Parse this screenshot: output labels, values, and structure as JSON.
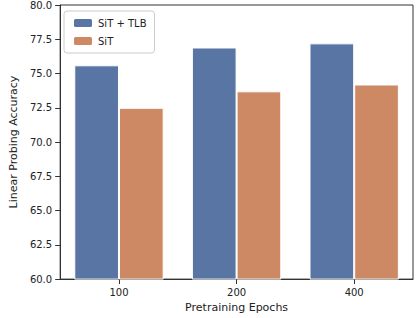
{
  "chart_data": {
    "type": "bar",
    "x_label": "Pretraining Epochs",
    "y_label": "Linear Probing Accuracy",
    "categories": [
      "100",
      "200",
      "400"
    ],
    "series": [
      {
        "name": "SiT + TLB",
        "color": "#5875a4",
        "values": [
          75.6,
          76.9,
          77.2
        ]
      },
      {
        "name": "SiT",
        "color": "#cc8963",
        "values": [
          72.5,
          73.7,
          74.2
        ]
      }
    ],
    "ylim": [
      60,
      80
    ],
    "yticks": [
      {
        "value": 60,
        "label": "60.0"
      },
      62.5,
      {
        "value": 65,
        "label": "65.0"
      },
      67.5,
      {
        "value": 70,
        "label": "70.0"
      },
      72.5,
      {
        "value": 75,
        "label": "75.0"
      },
      77.5,
      {
        "value": 80,
        "label": "80.0"
      }
    ],
    "grid": false,
    "legend": "upper left"
  }
}
